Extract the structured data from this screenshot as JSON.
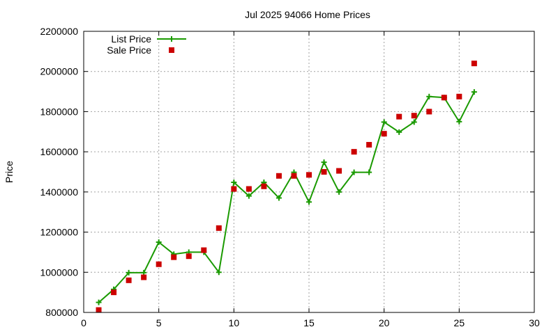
{
  "chart_data": {
    "type": "line",
    "title": "Jul 2025 94066 Home Prices",
    "xlabel": "",
    "ylabel": "Price",
    "xlim": [
      0,
      30
    ],
    "ylim": [
      800000,
      2200000
    ],
    "xticks": [
      0,
      5,
      10,
      15,
      20,
      25,
      30
    ],
    "yticks": [
      800000,
      1000000,
      1200000,
      1400000,
      1600000,
      1800000,
      2000000,
      2200000
    ],
    "grid": true,
    "legend_position": "top-left",
    "series": [
      {
        "name": "List Price",
        "kind": "line+cross",
        "color": "#1a9a00",
        "x": [
          1,
          2,
          3,
          4,
          5,
          6,
          7,
          8,
          9,
          10,
          11,
          12,
          13,
          14,
          15,
          16,
          17,
          18,
          19,
          20,
          21,
          22,
          23,
          24,
          25,
          26
        ],
        "y": [
          850000,
          915000,
          998000,
          998000,
          1150000,
          1090000,
          1100000,
          1100000,
          1000000,
          1448000,
          1380000,
          1448000,
          1370000,
          1498000,
          1350000,
          1548000,
          1400000,
          1498000,
          1498000,
          1748000,
          1698000,
          1748000,
          1875000,
          1870000,
          1750000,
          1898000
        ]
      },
      {
        "name": "Sale Price",
        "kind": "square",
        "color": "#cc0000",
        "x": [
          1,
          2,
          3,
          4,
          5,
          6,
          7,
          8,
          9,
          10,
          11,
          12,
          13,
          14,
          15,
          16,
          17,
          18,
          19,
          20,
          21,
          22,
          23,
          24,
          25,
          26
        ],
        "y": [
          812000,
          900000,
          960000,
          975000,
          1040000,
          1075000,
          1080000,
          1110000,
          1220000,
          1415000,
          1415000,
          1428000,
          1480000,
          1480000,
          1485000,
          1500000,
          1505000,
          1600000,
          1635000,
          1690000,
          1775000,
          1780000,
          1800000,
          1870000,
          1875000,
          2040000
        ]
      }
    ]
  }
}
